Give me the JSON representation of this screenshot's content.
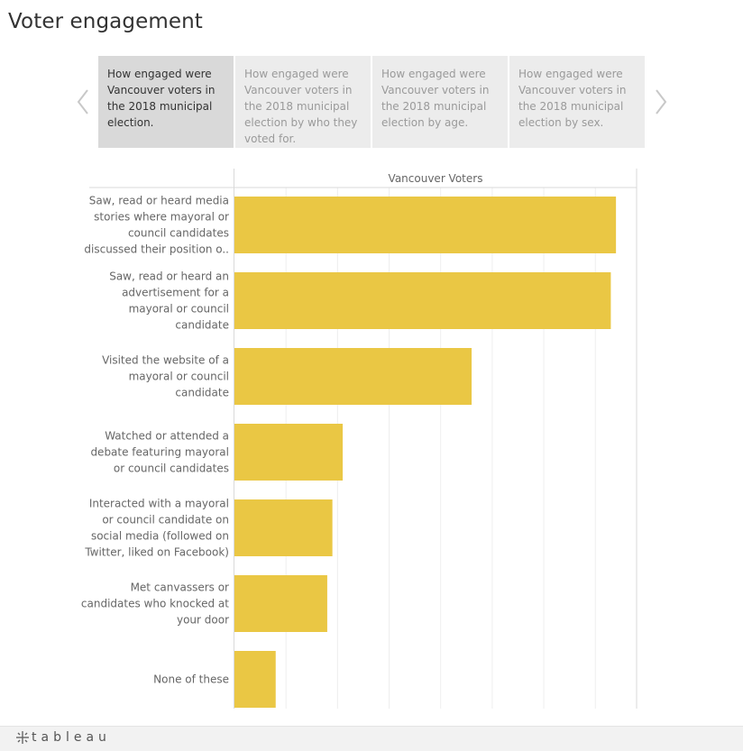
{
  "page": {
    "title": "Voter engagement"
  },
  "story_points": [
    {
      "text": "How engaged were Vancouver voters in the 2018 municipal election.",
      "active": true
    },
    {
      "text": "How engaged were Vancouver voters in the 2018 municipal election by who they voted for.",
      "active": false
    },
    {
      "text": "How engaged were Vancouver voters in the 2018 municipal election by age.",
      "active": false
    },
    {
      "text": "How engaged were Vancouver voters in the 2018 municipal election by sex.",
      "active": false
    }
  ],
  "navigation": {
    "prev_icon": "chevron-left-icon",
    "next_icon": "chevron-right-icon"
  },
  "chart_data": {
    "type": "bar",
    "orientation": "horizontal",
    "column_header": "Vancouver Voters",
    "categories": [
      [
        "Saw, read or heard media",
        "stories where mayoral or",
        "council candidates",
        "discussed their position o.."
      ],
      [
        "Saw, read or heard an",
        "advertisement for a",
        "mayoral or council",
        "candidate"
      ],
      [
        "Visited the website of a",
        "mayoral or council",
        "candidate"
      ],
      [
        "Watched or attended a",
        "debate featuring mayoral",
        "or council candidates"
      ],
      [
        "Interacted with a mayoral",
        "or council candidate on",
        "social media (followed on",
        "Twitter, liked on Facebook)"
      ],
      [
        "Met canvassers or",
        "candidates who knocked at",
        "your door"
      ],
      [
        "None of these"
      ]
    ],
    "values": [
      74,
      73,
      46,
      21,
      19,
      18,
      8
    ],
    "xlim": [
      0,
      78
    ],
    "grid_step": 10,
    "bar_color": "#eac744",
    "grid": true
  },
  "footer": {
    "brand": "tableau",
    "logo_icon": "tableau-logo-icon"
  }
}
